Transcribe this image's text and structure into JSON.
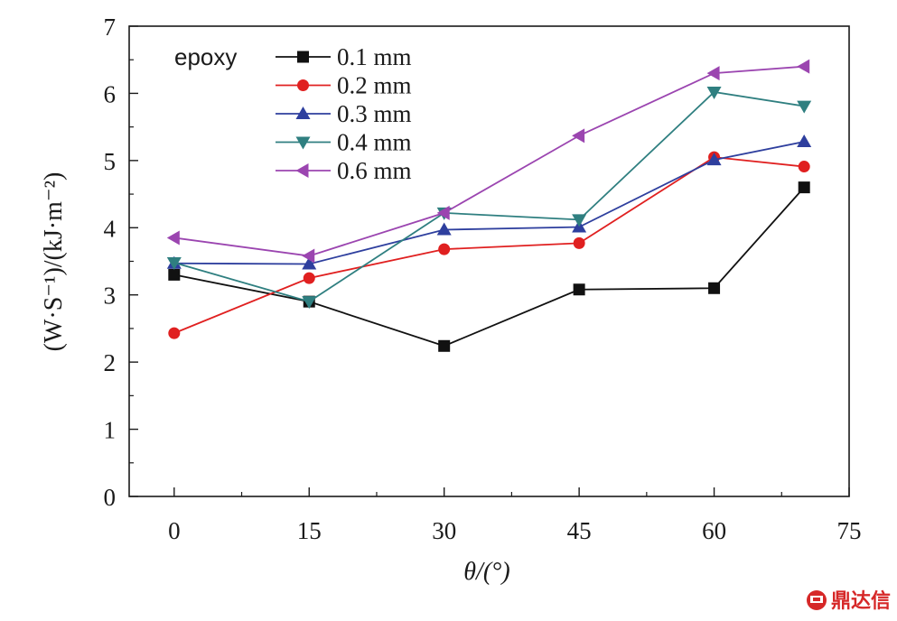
{
  "chart_data": {
    "type": "line",
    "x": [
      0,
      15,
      30,
      45,
      60,
      70
    ],
    "xlabel": "θ/(°)",
    "ylabel": "(W·S⁻¹)/(kJ·m⁻²)",
    "xlim": [
      -5,
      75
    ],
    "ylim": [
      0,
      7
    ],
    "x_ticks": [
      "0",
      "15",
      "30",
      "45",
      "60",
      "75"
    ],
    "y_ticks": [
      "0",
      "1",
      "2",
      "3",
      "4",
      "5",
      "6",
      "7"
    ],
    "annotation": "epoxy",
    "legend_position": "top-left",
    "grid": false,
    "series": [
      {
        "name": "0.1 mm",
        "color": "#111111",
        "marker": "square",
        "values": [
          3.3,
          2.9,
          2.24,
          3.08,
          3.1,
          4.6
        ]
      },
      {
        "name": "0.2 mm",
        "color": "#e02020",
        "marker": "circle",
        "values": [
          2.43,
          3.25,
          3.68,
          3.77,
          5.05,
          4.91
        ]
      },
      {
        "name": "0.3 mm",
        "color": "#2e3f9e",
        "marker": "triangle-up",
        "values": [
          3.47,
          3.46,
          3.97,
          4.01,
          5.01,
          5.28
        ]
      },
      {
        "name": "0.4 mm",
        "color": "#2f7f80",
        "marker": "triangle-down",
        "values": [
          3.48,
          2.9,
          4.22,
          4.12,
          6.02,
          5.81
        ]
      },
      {
        "name": "0.6 mm",
        "color": "#9b45b0",
        "marker": "triangle-left",
        "values": [
          3.85,
          3.58,
          4.22,
          5.37,
          6.3,
          6.4
        ]
      }
    ]
  },
  "watermark": {
    "icon": "dingdaxin-logo-icon",
    "text": "鼎达信"
  }
}
